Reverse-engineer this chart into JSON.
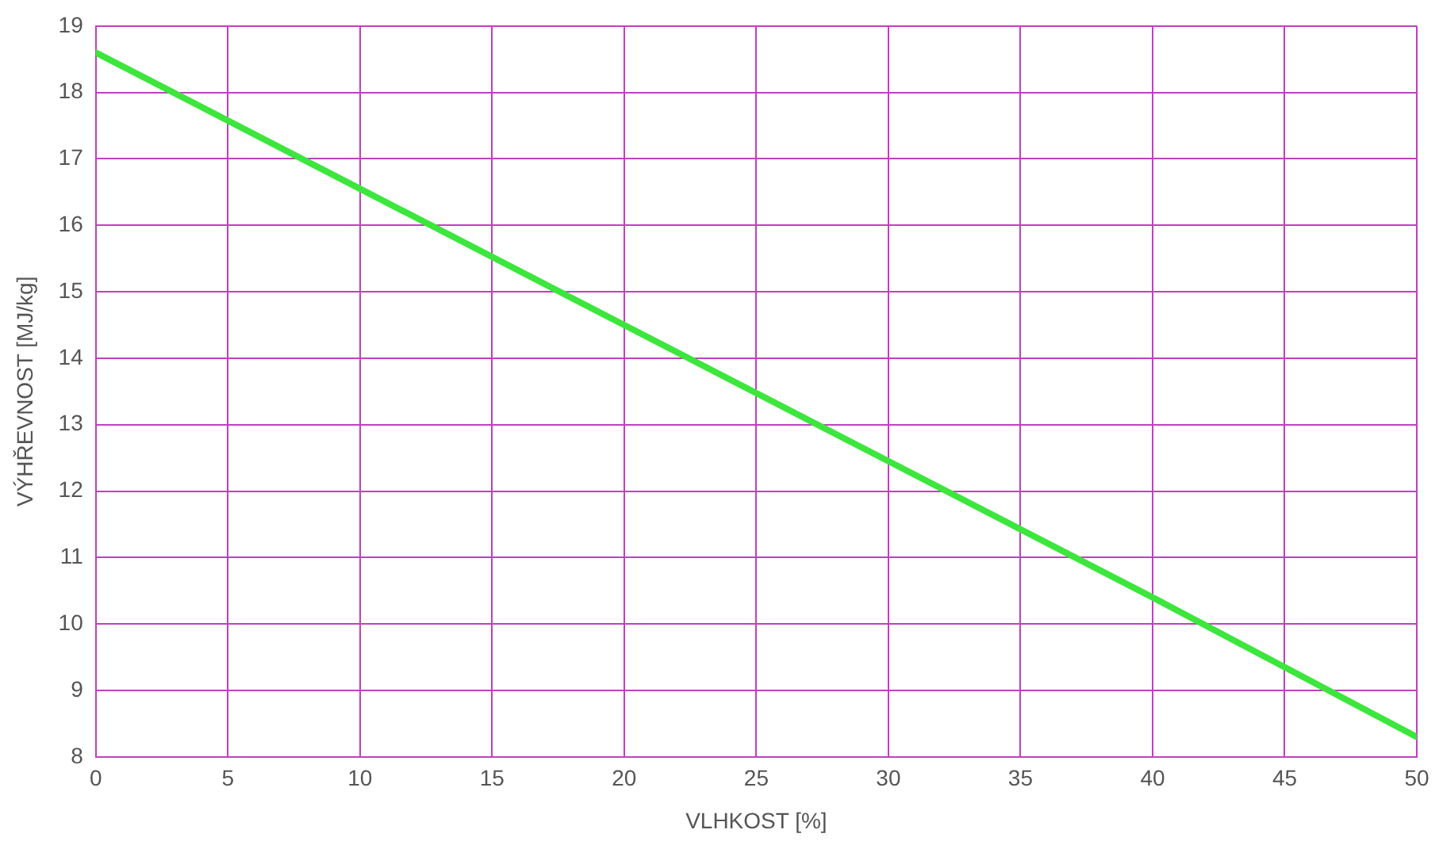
{
  "chart_data": {
    "type": "line",
    "xlabel": "VLHKOST [%]",
    "ylabel": "VÝHŘEVNOST [MJ/kg]",
    "x": [
      0,
      10,
      20,
      30,
      40,
      50
    ],
    "series": [
      {
        "color": "#3ce63c",
        "values": [
          18.6,
          16.55,
          14.5,
          12.45,
          10.4,
          8.3
        ]
      }
    ],
    "xlim": [
      0,
      50
    ],
    "xticks": [
      0,
      5,
      10,
      15,
      20,
      25,
      30,
      35,
      40,
      45,
      50
    ],
    "ylim": [
      8,
      19
    ],
    "yticks": [
      8,
      9,
      10,
      11,
      12,
      13,
      14,
      15,
      16,
      17,
      18,
      19
    ],
    "grid": true,
    "legend": false,
    "marker": "none",
    "line_style": "solid"
  }
}
